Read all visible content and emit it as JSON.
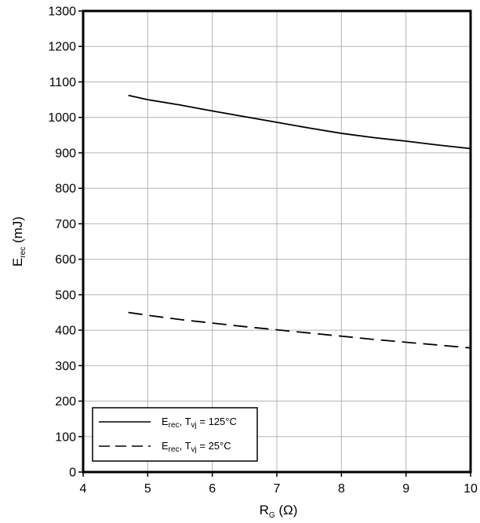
{
  "chart_data": {
    "type": "line",
    "xlabel": {
      "main": "R",
      "sub": "G",
      "unit": " (Ω)"
    },
    "ylabel": {
      "main": "E",
      "sub": "rec",
      "unit": " (mJ)"
    },
    "xlim": [
      4,
      10
    ],
    "ylim": [
      0,
      1300
    ],
    "xticks": [
      4,
      5,
      6,
      7,
      8,
      9,
      10
    ],
    "yticks": [
      0,
      100,
      200,
      300,
      400,
      500,
      600,
      700,
      800,
      900,
      1000,
      1100,
      1200,
      1300
    ],
    "grid": true,
    "legend_position": "bottom-left",
    "series": [
      {
        "label": {
          "main": "E",
          "sub1": "rec",
          "mid": ", T",
          "sub2": "vj",
          "tail": " = 125°C"
        },
        "style": "solid",
        "color": "#000000",
        "x": [
          4.7,
          5.0,
          5.5,
          6.0,
          6.5,
          7.0,
          7.5,
          8.0,
          8.5,
          9.0,
          9.5,
          10.0
        ],
        "y": [
          1062,
          1050,
          1035,
          1018,
          1002,
          986,
          970,
          955,
          943,
          933,
          922,
          912
        ]
      },
      {
        "label": {
          "main": "E",
          "sub1": "rec",
          "mid": ", T",
          "sub2": "vj",
          "tail": " = 25°C"
        },
        "style": "dashed",
        "color": "#000000",
        "x": [
          4.7,
          5.0,
          5.5,
          6.0,
          6.5,
          7.0,
          7.5,
          8.0,
          8.5,
          9.0,
          9.5,
          10.0
        ],
        "y": [
          450,
          442,
          430,
          420,
          410,
          401,
          392,
          383,
          374,
          366,
          358,
          350
        ]
      }
    ]
  }
}
